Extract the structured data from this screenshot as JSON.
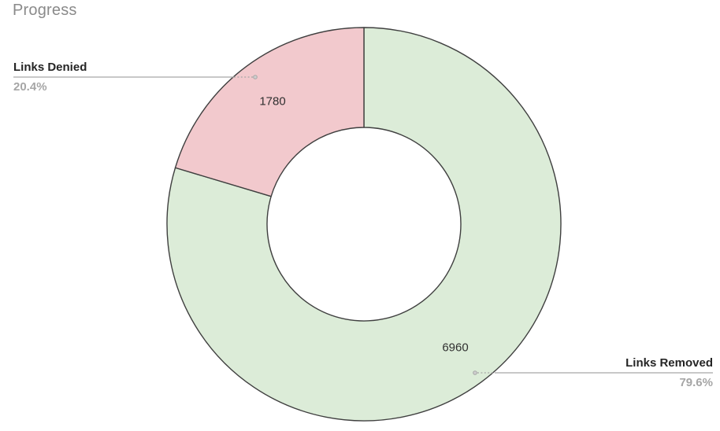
{
  "chart_data": {
    "type": "pie",
    "subtype": "donut",
    "title": "Progress",
    "start_angle_deg": 0,
    "direction": "clockwise",
    "inner_radius_ratio": 0.49,
    "legend_position": "none",
    "slices": [
      {
        "label": "Links Removed",
        "value": 6960,
        "percent": "79.6%",
        "color": "#dcecd8"
      },
      {
        "label": "Links Denied",
        "value": 1780,
        "percent": "20.4%",
        "color": "#f2c9cd"
      }
    ],
    "colors": {
      "slice_stroke": "#3f3f3f",
      "leader_line": "#a6a6a6",
      "callout_label": "#252525",
      "callout_percent": "#a6a6a6",
      "value_label": "#303030",
      "title": "#8a8a8a"
    }
  }
}
